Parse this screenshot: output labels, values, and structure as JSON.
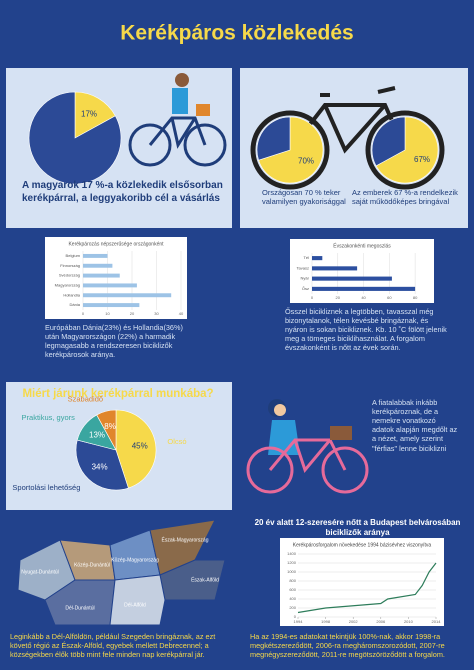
{
  "title": "Kerékpáros közlekedés",
  "captions": {
    "commuting": "A magyarok 17 %-a közlekedik elsősorban kerékpárral, a leggyakoribb cél a vásárlás",
    "nationwide": "Országosan 70 % teker valamilyen gyakorisággal",
    "ownership": "Az emberek 67 %-a rendelkezik saját működőképes bringával",
    "europe": "Európában Dánia(23%) és Hollandia(36%) után Magyarországon (22%) a harmadik legmagasabb a rendszeresen biciklizők kerékpárosok aránya.",
    "seasons": "Ősszel bicikliznek a legtöbben, tavasszal még bizonytalanok, télen kevésbé bringáznak, és nyáron is sokan bicikliznek. Kb. 10 ˚C fölött jelenik meg a tömeges biciklihasználat. A forgalom évszakonként is nőtt az évek során.",
    "youth": "A fiatalabbak inkább kerékpároznak, de a nemekre vonatkozó adatok alapján megdőlt az a nézet, amely szerint \"férfias\" lenne biciklizni",
    "growth_heading": "20 év alatt 12-szeresére nőtt a Budapest belvárosában biciklizők aránya",
    "regions": "Leginkább a Dél-Alföldön, például Szegeden bringáznak, az ezt követő régió az Észak-Alföld, egyebek mellett Debrecennel; a községekben élők több mint fele minden nap kerékpárral jár.",
    "growth": "Ha az 1994-es adatokat tekintjük 100%-nak, akkor 1998-ra megkétszereződött, 2006-ra megháromszorozódott, 2007-re megnégyszereződött, 2011-re megötszöröződött a forgalom."
  },
  "map": {
    "regions": [
      "Észak-Magyarország",
      "Észak-Alföld",
      "Közép-Magyarország",
      "Közép-Dunántúl",
      "Nyugat-Dunántúl",
      "Dél-Dunántúl",
      "Dél-Alföld"
    ]
  },
  "chart_data": [
    {
      "type": "pie",
      "values": [
        17,
        83
      ],
      "value_labels": [
        "17%",
        null
      ],
      "colors": [
        "#f6d94a",
        "#2c4a96"
      ]
    },
    {
      "type": "pie",
      "values": [
        70,
        30
      ],
      "value_labels": [
        "70%",
        null
      ],
      "colors": [
        "#f6d94a",
        "#2c4a96"
      ]
    },
    {
      "type": "pie",
      "values": [
        67,
        33
      ],
      "value_labels": [
        "67%",
        null
      ],
      "colors": [
        "#f6d94a",
        "#2c4a96"
      ]
    },
    {
      "type": "bar",
      "orientation": "horizontal",
      "title": "Kerékpározás népszerűsége országonként",
      "categories": [
        "Belgium",
        "Finnország",
        "Svédország",
        "Magyarország",
        "Hollandia",
        "Dánia"
      ],
      "values": [
        10,
        12,
        15,
        22,
        36,
        23
      ],
      "color": "#9dc3e6",
      "xlim": [
        0,
        40
      ],
      "xticks": [
        0,
        10,
        20,
        30,
        40
      ],
      "grid": true
    },
    {
      "type": "bar",
      "orientation": "horizontal",
      "title": "Évszakonkénti megoszlás",
      "categories": [
        "Tél",
        "Tavasz",
        "Nyár",
        "Ősz"
      ],
      "values": [
        8,
        35,
        62,
        80
      ],
      "color": "#2c4fa0",
      "xlim": [
        0,
        90
      ],
      "xticks": [
        0,
        20,
        40,
        60,
        80
      ],
      "grid": true
    },
    {
      "type": "pie",
      "title": "Miért járunk kerékpárral munkába?",
      "categories": [
        "Olcsó",
        "Sportolási lehetőség",
        "Praktikus, gyors",
        "Szabadidő"
      ],
      "values": [
        45,
        34,
        13,
        8
      ],
      "value_labels": [
        "45%",
        "34%",
        "13%",
        "8%"
      ],
      "colors": [
        "#f6d94a",
        "#2c4a96",
        "#3aa6a0",
        "#e0862c"
      ]
    },
    {
      "type": "line",
      "title": "Kerékpárosforgalom növekedése 1994 bázisévhez viszonyítva",
      "x": [
        1994,
        1998,
        2002,
        2006,
        2007,
        2011,
        2012,
        2013,
        2014
      ],
      "values": [
        100,
        200,
        250,
        300,
        400,
        500,
        700,
        1000,
        1200
      ],
      "color": "#2e7d5b",
      "xlim": [
        1994,
        2014
      ],
      "xticks": [
        1994,
        1998,
        2002,
        2006,
        2010,
        2014
      ],
      "ylim": [
        0,
        1400
      ],
      "yticks": [
        0,
        200,
        400,
        600,
        800,
        1000,
        1200,
        1400
      ],
      "grid": true
    }
  ]
}
